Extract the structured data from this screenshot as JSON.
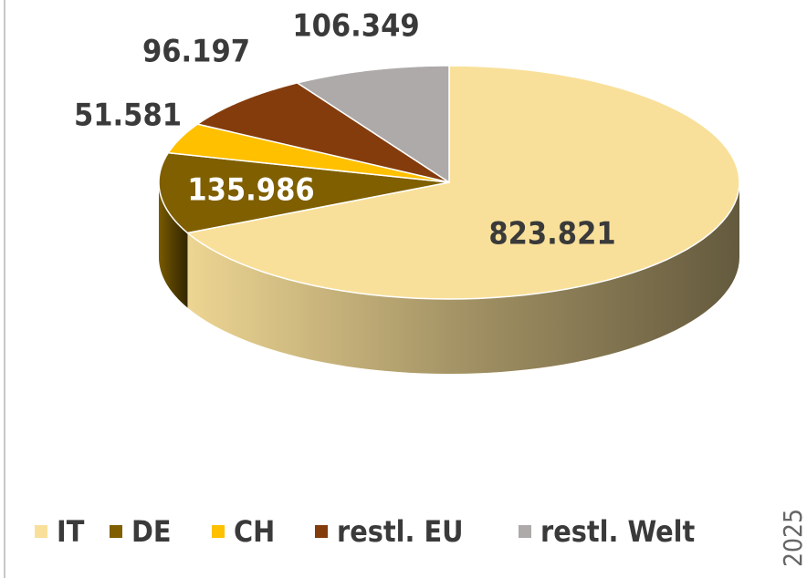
{
  "chart_data": {
    "type": "pie3d",
    "categories": [
      "IT",
      "DE",
      "CH",
      "restl. EU",
      "restl. Welt"
    ],
    "values": [
      823821,
      135986,
      51581,
      96197,
      106349
    ],
    "value_labels": [
      "823.821",
      "135.986",
      "51.581",
      "96.197",
      "106.349"
    ],
    "colors": [
      "#f9e09a",
      "#7f5f00",
      "#ffc000",
      "#843c0c",
      "#aeaaaa"
    ],
    "legend": "bottom",
    "side_label": "2025"
  }
}
